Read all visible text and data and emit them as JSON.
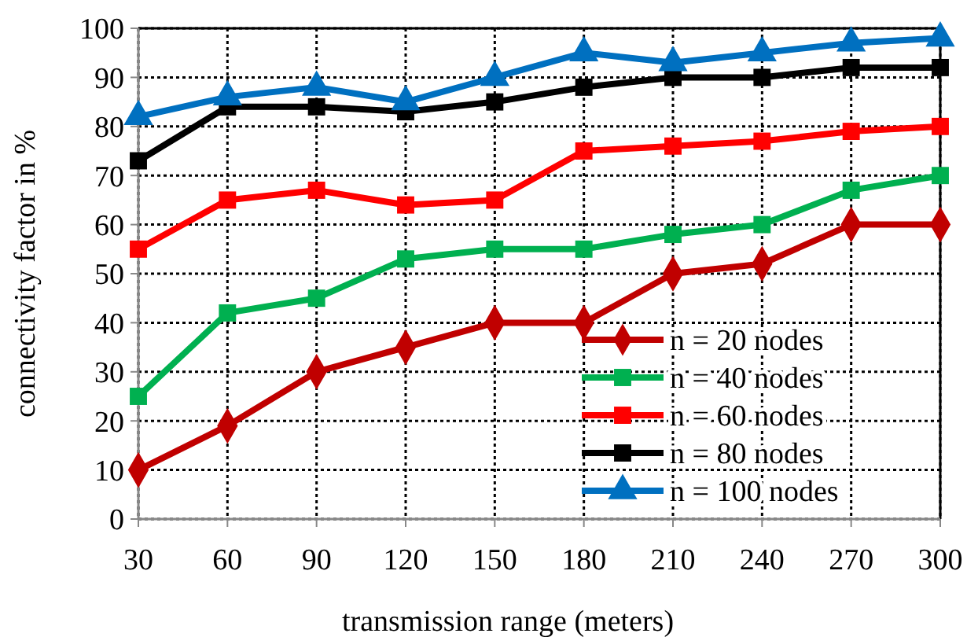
{
  "chart_data": {
    "type": "line",
    "xlabel": "transmission range (meters)",
    "ylabel": "connectivity factor in %",
    "categories": [
      "30",
      "60",
      "90",
      "120",
      "150",
      "180",
      "210",
      "240",
      "270",
      "300"
    ],
    "ylim": [
      0,
      100
    ],
    "yticks": [
      0,
      10,
      20,
      30,
      40,
      50,
      60,
      70,
      80,
      90,
      100
    ],
    "grid": true,
    "legend": "bottom right",
    "series": [
      {
        "name": "n = 20 nodes",
        "color": "#c00000",
        "marker": "diamond",
        "values": [
          10,
          19,
          30,
          35,
          40,
          40,
          50,
          52,
          60,
          60
        ]
      },
      {
        "name": "n = 40 nodes",
        "color": "#00b050",
        "marker": "square",
        "values": [
          25,
          42,
          45,
          53,
          55,
          55,
          58,
          60,
          67,
          70
        ]
      },
      {
        "name": "n = 60 nodes",
        "color": "#ff0000",
        "marker": "square",
        "values": [
          55,
          65,
          67,
          64,
          65,
          75,
          76,
          77,
          79,
          80
        ]
      },
      {
        "name": "n = 80 nodes",
        "color": "#000000",
        "marker": "square",
        "values": [
          73,
          84,
          84,
          83,
          85,
          88,
          90,
          90,
          92,
          92
        ]
      },
      {
        "name": "n = 100 nodes",
        "color": "#0070c0",
        "marker": "triangle",
        "values": [
          82,
          86,
          88,
          85,
          90,
          95,
          93,
          95,
          97,
          98
        ]
      }
    ]
  }
}
